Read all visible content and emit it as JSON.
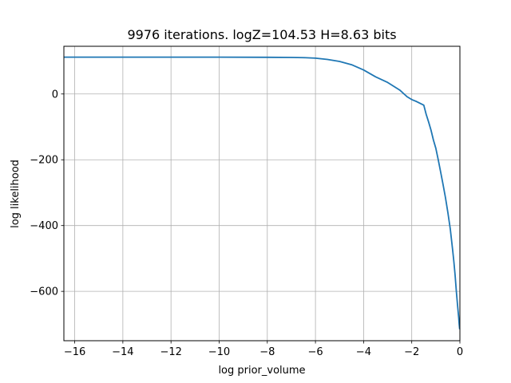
{
  "chart_data": {
    "type": "line",
    "title": "9976 iterations. logZ=104.53 H=8.63 bits",
    "xlabel": "log prior_volume",
    "ylabel": "log likelihood",
    "xlim": [
      -16.45,
      0
    ],
    "ylim": [
      -750,
      145
    ],
    "xticks": [
      -16,
      -14,
      -12,
      -10,
      -8,
      -6,
      -4,
      -2,
      0
    ],
    "xtick_labels": [
      "−16",
      "−14",
      "−12",
      "−10",
      "−8",
      "−6",
      "−4",
      "−2",
      "0"
    ],
    "yticks": [
      0,
      -200,
      -400,
      -600
    ],
    "ytick_labels": [
      "0",
      "−200",
      "−400",
      "−600"
    ],
    "grid": true,
    "series": [
      {
        "color": "#1f77b4",
        "x": [
          -16.45,
          -14,
          -12,
          -10,
          -8,
          -7,
          -6.5,
          -6,
          -5.5,
          -5,
          -4.5,
          -4,
          -3.5,
          -3,
          -2.5,
          -2.2,
          -2,
          -1.8,
          -1.5,
          -1.4,
          -1.3,
          -1.2,
          -1.1,
          -1.0,
          -0.9,
          -0.8,
          -0.7,
          -0.6,
          -0.5,
          -0.4,
          -0.3,
          -0.25,
          -0.2,
          -0.15,
          -0.1,
          -0.05,
          -0.03,
          -0.01
        ],
        "y": [
          112,
          112,
          112,
          112,
          111.5,
          111,
          110.5,
          109,
          105,
          99,
          89,
          73,
          52,
          35,
          12,
          -8,
          -17,
          -23,
          -34,
          -62,
          -85,
          -110,
          -140,
          -165,
          -200,
          -237,
          -275,
          -315,
          -360,
          -410,
          -475,
          -510,
          -550,
          -598,
          -640,
          -680,
          -700,
          -715
        ]
      }
    ]
  }
}
